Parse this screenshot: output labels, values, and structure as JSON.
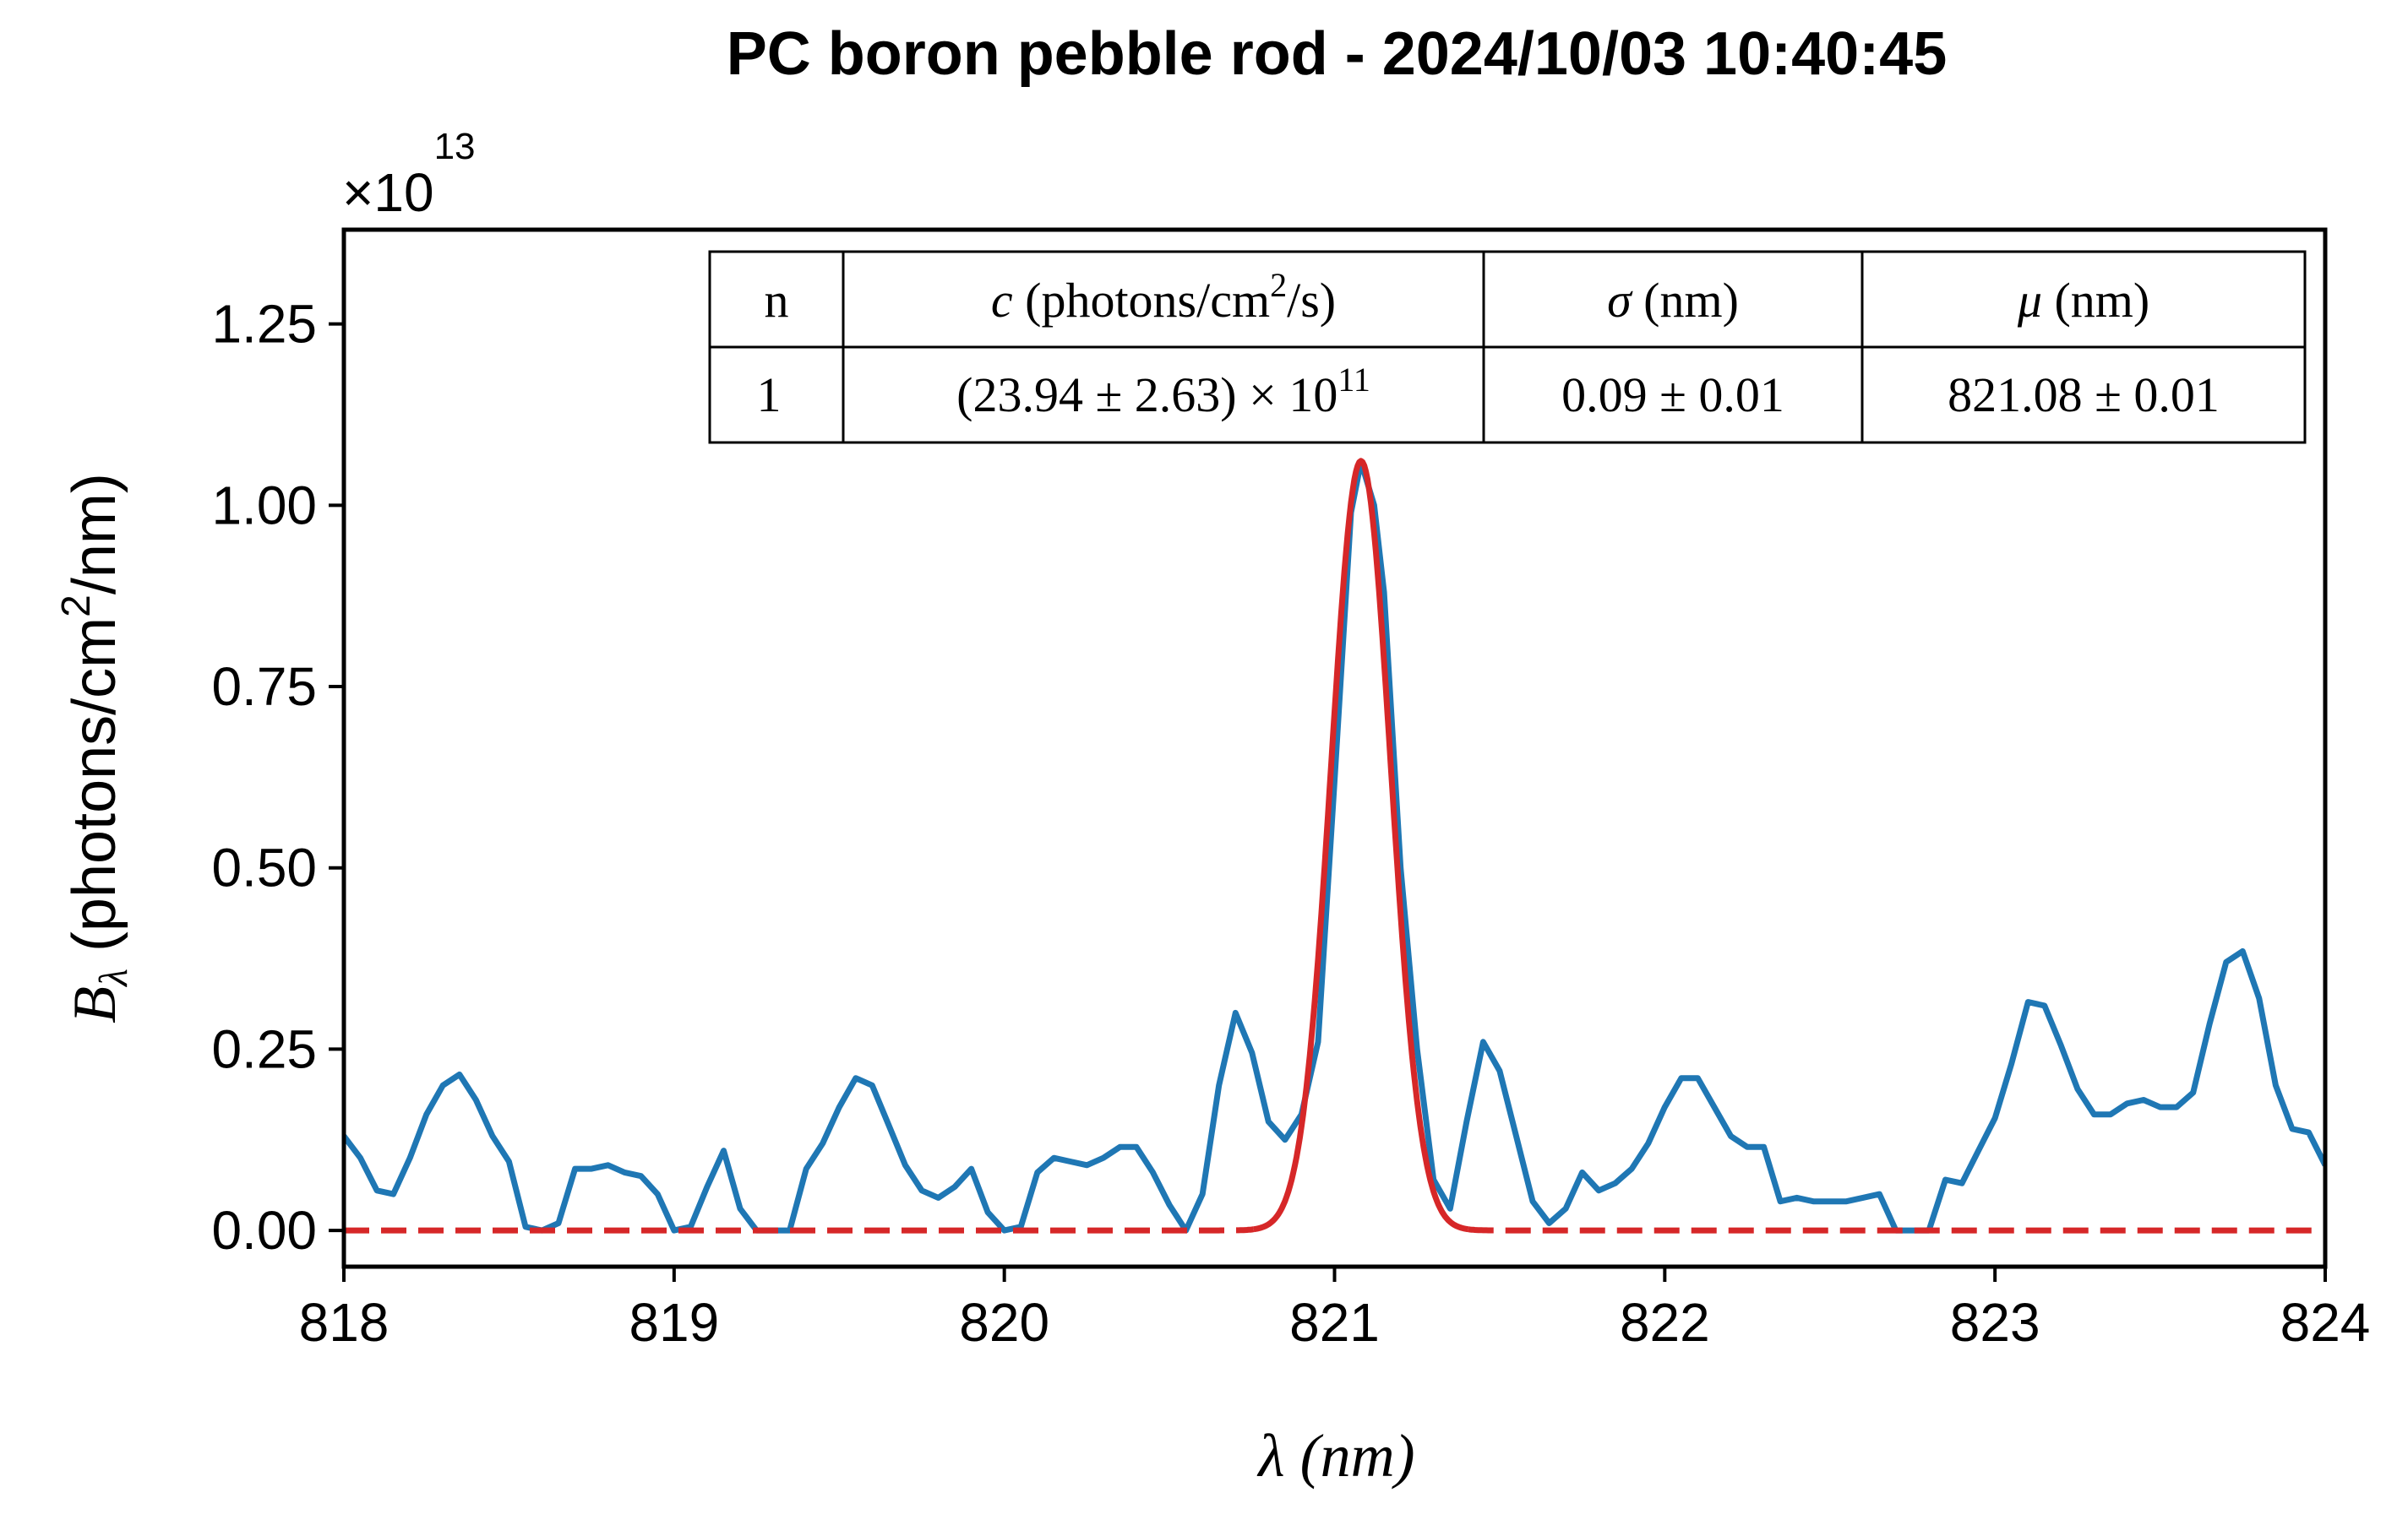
{
  "chart_data": {
    "type": "line",
    "title": "PC boron pebble rod - 2024/10/03 10:40:45",
    "xlabel": "λ (nm)",
    "ylabel": {
      "symbol": "B",
      "subscript": "λ",
      "text": " (photons/cm",
      "sup": "2",
      "tail": "/nm)"
    },
    "y_offset": {
      "prefix": "×10",
      "exp": "13"
    },
    "xlim": [
      818,
      824
    ],
    "ylim": [
      -0.05,
      1.38
    ],
    "x_ticks": [
      818,
      819,
      820,
      821,
      822,
      823,
      824
    ],
    "x_tick_labels": [
      "818",
      "819",
      "820",
      "821",
      "822",
      "823",
      "824"
    ],
    "y_ticks": [
      0.0,
      0.25,
      0.5,
      0.75,
      1.0,
      1.25
    ],
    "y_tick_labels": [
      "0.00",
      "0.25",
      "0.50",
      "0.75",
      "1.00",
      "1.25"
    ],
    "grid": false,
    "colors": {
      "data": "#1f77b4",
      "fit": "#d62728"
    },
    "series": [
      {
        "style": "solid",
        "x": [
          818.0,
          818.05,
          818.1,
          818.15,
          818.2,
          818.25,
          818.3,
          818.35,
          818.4,
          818.45,
          818.5,
          818.55,
          818.6,
          818.65,
          818.7,
          818.75,
          818.8,
          818.85,
          818.9,
          818.95,
          819.0,
          819.05,
          819.1,
          819.15,
          819.2,
          819.25,
          819.3,
          819.35,
          819.4,
          819.45,
          819.5,
          819.55,
          819.6,
          819.65,
          819.7,
          819.75,
          819.8,
          819.85,
          819.9,
          819.95,
          820.0,
          820.05,
          820.1,
          820.15,
          820.2,
          820.25,
          820.3,
          820.35,
          820.4,
          820.45,
          820.5,
          820.55,
          820.6,
          820.65,
          820.7,
          820.75,
          820.8,
          820.85,
          820.9,
          820.95,
          821.0,
          821.05,
          821.08,
          821.12,
          821.15,
          821.2,
          821.25,
          821.3,
          821.35,
          821.4,
          821.45,
          821.5,
          821.55,
          821.6,
          821.65,
          821.7,
          821.75,
          821.8,
          821.85,
          821.9,
          821.95,
          822.0,
          822.05,
          822.1,
          822.15,
          822.2,
          822.25,
          822.3,
          822.35,
          822.4,
          822.45,
          822.5,
          822.55,
          822.6,
          822.65,
          822.7,
          822.75,
          822.8,
          822.85,
          822.9,
          822.95,
          823.0,
          823.05,
          823.1,
          823.15,
          823.2,
          823.25,
          823.3,
          823.35,
          823.4,
          823.45,
          823.5,
          823.55,
          823.6,
          823.65,
          823.7,
          823.75,
          823.8,
          823.85,
          823.9,
          823.95,
          824.0
        ],
        "y": [
          0.13,
          0.1,
          0.055,
          0.05,
          0.1,
          0.16,
          0.2,
          0.215,
          0.18,
          0.13,
          0.095,
          0.005,
          0.0,
          0.01,
          0.085,
          0.085,
          0.09,
          0.08,
          0.075,
          0.05,
          0.0,
          0.005,
          0.06,
          0.11,
          0.03,
          0.0,
          0.0,
          0.0,
          0.085,
          0.12,
          0.17,
          0.21,
          0.2,
          0.145,
          0.09,
          0.055,
          0.045,
          0.06,
          0.085,
          0.025,
          0.0,
          0.005,
          0.08,
          0.1,
          0.095,
          0.09,
          0.1,
          0.115,
          0.115,
          0.08,
          0.035,
          0.0,
          0.05,
          0.2,
          0.3,
          0.245,
          0.15,
          0.125,
          0.16,
          0.26,
          0.62,
          0.99,
          1.06,
          1.0,
          0.88,
          0.5,
          0.25,
          0.07,
          0.03,
          0.15,
          0.26,
          0.22,
          0.13,
          0.04,
          0.01,
          0.03,
          0.08,
          0.055,
          0.065,
          0.085,
          0.12,
          0.17,
          0.21,
          0.21,
          0.17,
          0.13,
          0.115,
          0.115,
          0.04,
          0.045,
          0.04,
          0.04,
          0.04,
          0.045,
          0.05,
          0.0,
          0.0,
          0.0,
          0.07,
          0.065,
          0.11,
          0.155,
          0.23,
          0.315,
          0.31,
          0.255,
          0.195,
          0.16,
          0.16,
          0.175,
          0.18,
          0.17,
          0.17,
          0.19,
          0.285,
          0.37,
          0.385,
          0.32,
          0.2,
          0.14,
          0.135,
          0.09
        ]
      },
      {
        "style": "gaussian-fit",
        "c": 23.94,
        "sigma": 0.09,
        "mu": 821.08
      }
    ],
    "table": {
      "headers": [
        {
          "italic": "c",
          "text": " (photons/cm",
          "sup": "2",
          "tail": "/s)"
        },
        {
          "italic": "σ",
          "text": " (nm)"
        },
        {
          "italic": "μ",
          "text": " (nm)"
        }
      ],
      "header_n": "n",
      "rows": [
        {
          "n": "1",
          "c_main": "(23.94 ± 2.63) × 10",
          "c_exp": "11",
          "sigma": "0.09 ± 0.01",
          "mu": "821.08 ± 0.01"
        }
      ]
    }
  }
}
